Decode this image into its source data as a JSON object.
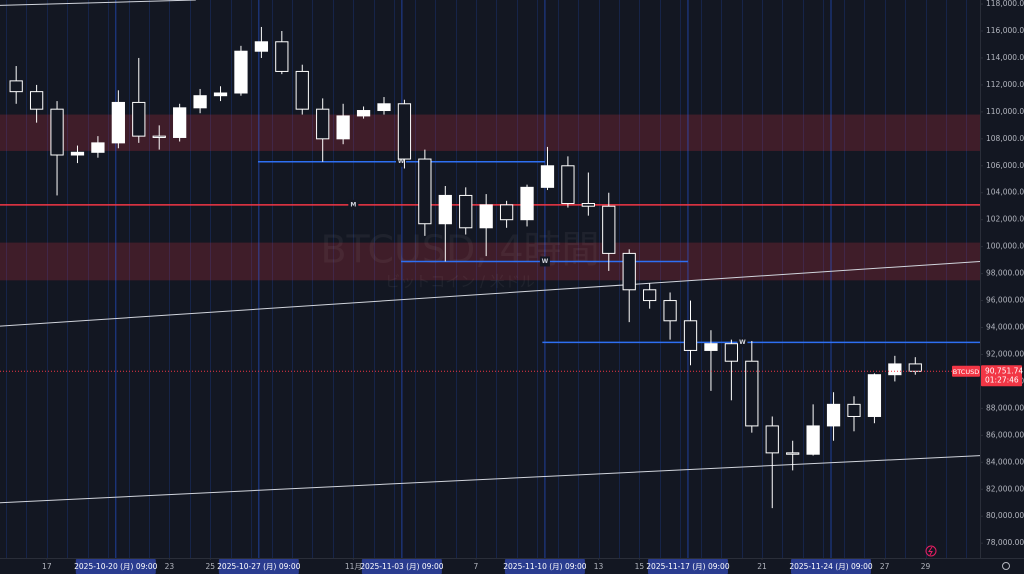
{
  "chart_data": {
    "type": "candlestick",
    "watermark": {
      "title": "BTCUSD, 4時間",
      "subtitle": "ビットコイン / 米ドル"
    },
    "xlim": [
      "2025-10-14 17:00",
      "2025-12-01 16:00"
    ],
    "ylim": [
      76900,
      118300
    ],
    "yticks": [
      {
        "value": 78000,
        "label": "78,000.00"
      },
      {
        "value": 80000,
        "label": "80,000.00"
      },
      {
        "value": 82000,
        "label": "82,000.00"
      },
      {
        "value": 84000,
        "label": "84,000.00"
      },
      {
        "value": 86000,
        "label": "86,000.00"
      },
      {
        "value": 88000,
        "label": "88,000.00"
      },
      {
        "value": 90000,
        "label": "90,000.00"
      },
      {
        "value": 92000,
        "label": "92,000.00"
      },
      {
        "value": 94000,
        "label": "94,000.00"
      },
      {
        "value": 96000,
        "label": "96,000.00"
      },
      {
        "value": 98000,
        "label": "98,000.00"
      },
      {
        "value": 100000,
        "label": "100,000.00"
      },
      {
        "value": 102000,
        "label": "102,000.00"
      },
      {
        "value": 104000,
        "label": "104,000.00"
      },
      {
        "value": 106000,
        "label": "106,000.00"
      },
      {
        "value": 108000,
        "label": "108,000.00"
      },
      {
        "value": 110000,
        "label": "110,000.00"
      },
      {
        "value": 112000,
        "label": "112,000.00"
      },
      {
        "value": 114000,
        "label": "114,000.00"
      },
      {
        "value": 116000,
        "label": "116,000.00"
      },
      {
        "value": 118000,
        "label": "118,000.00"
      }
    ],
    "xticks": [
      {
        "value": "2025-10-17 00:00",
        "label": "17"
      },
      {
        "value": "2025-10-20 09:00",
        "label": "2025-10-20 (月)  09:00",
        "highlight": true
      },
      {
        "value": "2025-10-23 00:00",
        "label": "23"
      },
      {
        "value": "2025-10-25 00:00",
        "label": "25"
      },
      {
        "value": "2025-10-27 09:00",
        "label": "2025-10-27 (月)  09:00",
        "highlight": true
      },
      {
        "value": "2025-11-01 00:00",
        "label": "11月"
      },
      {
        "value": "2025-11-03 09:00",
        "label": "2025-11-03 (月)  09:00",
        "highlight": true
      },
      {
        "value": "2025-11-07 00:00",
        "label": "7"
      },
      {
        "value": "2025-11-10 09:00",
        "label": "2025-11-10 (月)  09:00",
        "highlight": true
      },
      {
        "value": "2025-11-13 00:00",
        "label": "13"
      },
      {
        "value": "2025-11-15 00:00",
        "label": "15"
      },
      {
        "value": "2025-11-17 09:00",
        "label": "2025-11-17 (月)  09:00",
        "highlight": true
      },
      {
        "value": "2025-11-21 00:00",
        "label": "21"
      },
      {
        "value": "2025-11-24 09:00",
        "label": "2025-11-24 (月)  09:00",
        "highlight": true
      },
      {
        "value": "2025-11-27 00:00",
        "label": "27"
      },
      {
        "value": "2025-11-29 00:00",
        "label": "29"
      }
    ],
    "up_color": "#ffffff",
    "down_color": "#131722",
    "candles": {
      "x": [
        "2025-10-15",
        "2025-10-16",
        "2025-10-17",
        "2025-10-18",
        "2025-10-19",
        "2025-10-20",
        "2025-10-21",
        "2025-10-22",
        "2025-10-23",
        "2025-10-24",
        "2025-10-25",
        "2025-10-26",
        "2025-10-27",
        "2025-10-28",
        "2025-10-29",
        "2025-10-30",
        "2025-10-31",
        "2025-11-01",
        "2025-11-02",
        "2025-11-03",
        "2025-11-04",
        "2025-11-05",
        "2025-11-06",
        "2025-11-07",
        "2025-11-08",
        "2025-11-09",
        "2025-11-10",
        "2025-11-11",
        "2025-11-12",
        "2025-11-13",
        "2025-11-14",
        "2025-11-15",
        "2025-11-16",
        "2025-11-17",
        "2025-11-18",
        "2025-11-19",
        "2025-11-20",
        "2025-11-21",
        "2025-11-22",
        "2025-11-23",
        "2025-11-24",
        "2025-11-25",
        "2025-11-26",
        "2025-11-27",
        "2025-11-28"
      ],
      "open": [
        112300,
        111500,
        110200,
        106800,
        107000,
        107700,
        110700,
        108200,
        108100,
        110300,
        111200,
        111400,
        114500,
        115200,
        113000,
        110200,
        108000,
        109700,
        110100,
        110600,
        106500,
        101700,
        103800,
        101400,
        103100,
        102000,
        104400,
        106000,
        103200,
        103000,
        99500,
        96800,
        96000,
        94500,
        92300,
        92800,
        91500,
        86700,
        84700,
        84600,
        86700,
        88300,
        87400,
        90500,
        91300
      ],
      "high": [
        113400,
        112000,
        110800,
        107500,
        108200,
        111600,
        114000,
        109000,
        110600,
        111700,
        111900,
        114900,
        116300,
        116000,
        113500,
        111000,
        110600,
        110400,
        111100,
        110900,
        107200,
        104500,
        104400,
        103900,
        103400,
        104600,
        107400,
        106700,
        105500,
        104000,
        99800,
        97300,
        96600,
        96000,
        93800,
        93100,
        93000,
        87400,
        85600,
        88300,
        89200,
        88900,
        90600,
        91900,
        91800
      ],
      "low": [
        110600,
        109200,
        103800,
        106200,
        106600,
        107300,
        107700,
        107200,
        107800,
        109900,
        110800,
        111200,
        114000,
        112800,
        109800,
        106300,
        107600,
        109500,
        109800,
        105800,
        100800,
        98900,
        100900,
        99300,
        101400,
        101500,
        104200,
        102900,
        102300,
        98200,
        94400,
        95400,
        93100,
        91200,
        89300,
        88600,
        86200,
        80600,
        83400,
        84500,
        85600,
        86300,
        86900,
        90000,
        90500
      ],
      "close": [
        111500,
        110200,
        106800,
        107000,
        107700,
        110700,
        108200,
        108100,
        110300,
        111200,
        111400,
        114500,
        115200,
        113000,
        110200,
        108000,
        109700,
        110100,
        110600,
        106500,
        101700,
        103800,
        101400,
        103100,
        102000,
        104400,
        106000,
        103200,
        103000,
        99500,
        96800,
        96000,
        94500,
        92300,
        92800,
        91500,
        86700,
        84700,
        84600,
        86700,
        88300,
        87400,
        90500,
        91300,
        90751.74
      ]
    },
    "zones": [
      {
        "from": 107100,
        "to": 109800,
        "color": "rgba(242,54,69,0.2)"
      },
      {
        "from": 97500,
        "to": 100300,
        "color": "rgba(242,54,69,0.2)"
      }
    ],
    "levels": [
      {
        "value": 106300,
        "from": "2025-10-27 08:00",
        "to": "2025-11-10 09:00",
        "marker": "W",
        "marker_at": "2025-11-03 08:00",
        "color": "#2e6ff2"
      },
      {
        "value": 103100,
        "from": "2025-10-14 17:00",
        "to": "2025-12-01 16:00",
        "marker": "M",
        "marker_at": "2025-11-01 00:00",
        "color": "#f23645"
      },
      {
        "value": 98900,
        "from": "2025-11-03 08:00",
        "to": "2025-11-17 09:00",
        "marker": "W",
        "marker_at": "2025-11-10 09:00",
        "color": "#2e6ff2"
      },
      {
        "value": 92900,
        "from": "2025-11-10 06:00",
        "to": "2025-12-01 16:00",
        "marker": "W",
        "marker_at": "2025-11-20 01:00",
        "color": "#2e6ff2"
      }
    ],
    "trendlines": [
      {
        "x": [
          "2025-10-14 17:00",
          "2025-12-01 16:00"
        ],
        "y": [
          94100,
          98900
        ],
        "color": "#d1d4dc"
      },
      {
        "x": [
          "2025-10-14 17:00",
          "2025-12-01 16:00"
        ],
        "y": [
          81000,
          84500
        ],
        "color": "#d1d4dc"
      },
      {
        "x": [
          "2025-10-14 17:00",
          "2025-10-24 07:00"
        ],
        "y": [
          117900,
          118300
        ],
        "color": "#d1d4dc"
      }
    ],
    "last_price": {
      "value": 90751.74,
      "label": "90,751.74",
      "symbol": "BTCUSD",
      "countdown": "01:27:46",
      "color": "#f23645"
    }
  }
}
